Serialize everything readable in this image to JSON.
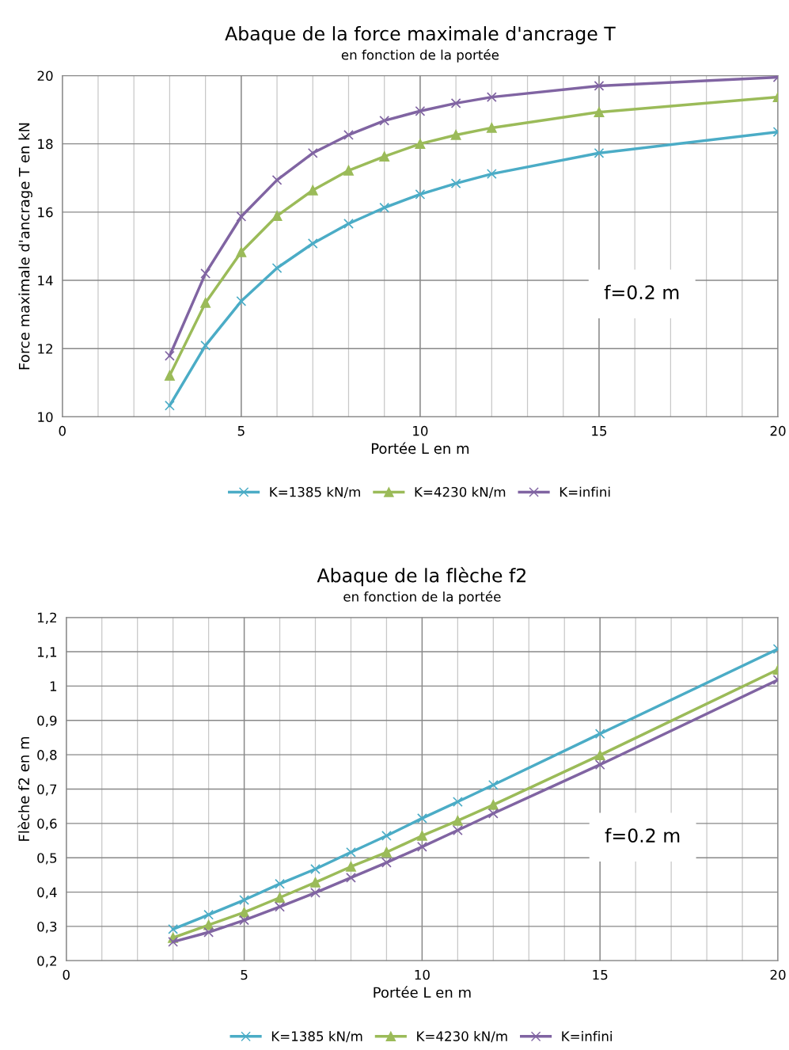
{
  "chart_data": [
    {
      "type": "line",
      "title": "Abaque de la force maximale d'ancrage T",
      "subtitle": "en fonction de la portée",
      "xlabel": "Portée L en m",
      "ylabel": "Force maximale d'ancrage T en kN",
      "x": [
        3,
        4,
        5,
        6,
        7,
        8,
        9,
        10,
        11,
        12,
        15,
        20
      ],
      "xlim": [
        0,
        20
      ],
      "xticks": [
        0,
        5,
        10,
        15,
        20
      ],
      "ylim": [
        10,
        20
      ],
      "yticks": [
        10,
        12,
        14,
        16,
        18,
        20
      ],
      "grid": true,
      "legend": "bottom",
      "annotations": [
        "f=0.2 m"
      ],
      "series": [
        {
          "name": "K=1385 kN/m",
          "color": "#4bacc6",
          "marker": "cross",
          "values": [
            10.33,
            12.09,
            13.39,
            14.36,
            15.08,
            15.66,
            16.13,
            16.52,
            16.84,
            17.12,
            17.73,
            18.35
          ]
        },
        {
          "name": "K=4230 kN/m",
          "color": "#9bbb59",
          "marker": "triangle",
          "values": [
            11.21,
            13.34,
            14.83,
            15.89,
            16.64,
            17.22,
            17.63,
            18.0,
            18.26,
            18.47,
            18.93,
            19.37
          ]
        },
        {
          "name": "K=infini",
          "color": "#8064a2",
          "marker": "cross",
          "values": [
            11.79,
            14.2,
            15.87,
            16.94,
            17.73,
            18.26,
            18.68,
            18.96,
            19.19,
            19.37,
            19.7,
            19.95
          ]
        }
      ]
    },
    {
      "type": "line",
      "title": "Abaque de la flèche f2",
      "subtitle": "en fonction de la portée",
      "xlabel": "Portée L en m",
      "ylabel": "Flèche f2 en m",
      "x": [
        3,
        4,
        5,
        6,
        7,
        8,
        9,
        10,
        11,
        12,
        15,
        20
      ],
      "xlim": [
        0,
        20
      ],
      "xticks": [
        0,
        5,
        10,
        15,
        20
      ],
      "ylim": [
        0.2,
        1.2
      ],
      "yticks": [
        {
          "value": 0.2,
          "label": "0,2"
        },
        {
          "value": 0.3,
          "label": "0,3"
        },
        {
          "value": 0.4,
          "label": "0,4"
        },
        {
          "value": 0.5,
          "label": "0,5"
        },
        {
          "value": 0.6,
          "label": "0,6"
        },
        {
          "value": 0.7,
          "label": "0,7"
        },
        {
          "value": 0.8,
          "label": "0,8"
        },
        {
          "value": 0.9,
          "label": "0,9"
        },
        1,
        {
          "value": 1.1,
          "label": "1,1"
        },
        {
          "value": 1.2,
          "label": "1,2"
        }
      ],
      "grid": true,
      "legend": "bottom",
      "annotations": [
        "f=0.2 m"
      ],
      "series": [
        {
          "name": "K=1385 kN/m",
          "color": "#4bacc6",
          "marker": "cross",
          "values": [
            0.292,
            0.334,
            0.377,
            0.424,
            0.467,
            0.516,
            0.564,
            0.615,
            0.663,
            0.712,
            0.861,
            1.108
          ]
        },
        {
          "name": "K=4230 kN/m",
          "color": "#9bbb59",
          "marker": "triangle",
          "values": [
            0.267,
            0.304,
            0.341,
            0.384,
            0.428,
            0.474,
            0.516,
            0.564,
            0.608,
            0.654,
            0.799,
            1.048
          ]
        },
        {
          "name": "K=infini",
          "color": "#8064a2",
          "marker": "cross",
          "values": [
            0.255,
            0.283,
            0.318,
            0.357,
            0.398,
            0.442,
            0.486,
            0.532,
            0.58,
            0.629,
            0.771,
            1.018
          ]
        }
      ]
    }
  ]
}
